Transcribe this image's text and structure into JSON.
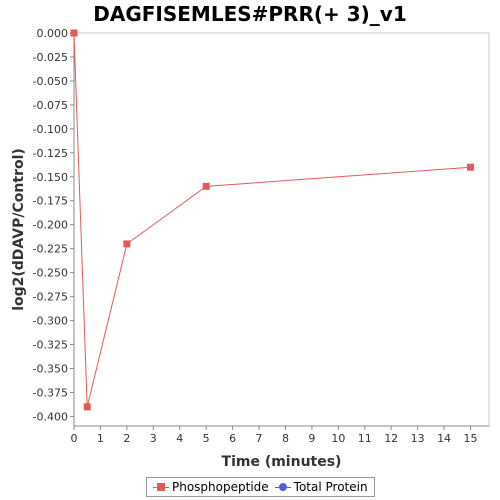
{
  "chart_data": {
    "type": "line",
    "title": "DAGFISEMLES#PRR(+ 3)_v1",
    "xlabel": "Time (minutes)",
    "ylabel": "log2(dDAVP/Control)",
    "xlim": [
      0,
      15.7
    ],
    "ylim": [
      -0.41,
      0.0
    ],
    "x_ticks": [
      0,
      1,
      2,
      3,
      4,
      5,
      6,
      7,
      8,
      9,
      10,
      11,
      12,
      13,
      14,
      15
    ],
    "y_ticks": [
      "0.000",
      "-0.025",
      "-0.050",
      "-0.075",
      "-0.100",
      "-0.125",
      "-0.150",
      "-0.175",
      "-0.200",
      "-0.225",
      "-0.250",
      "-0.275",
      "-0.300",
      "-0.325",
      "-0.350",
      "-0.375",
      "-0.400"
    ],
    "grid": false,
    "legend_position": "bottom",
    "series": [
      {
        "name": "Phosphopeptide",
        "color": "#e05a5a",
        "marker": "square",
        "points": [
          [
            0,
            0.0
          ],
          [
            0.5,
            -0.39
          ],
          [
            2,
            -0.22
          ],
          [
            5,
            -0.16
          ],
          [
            15,
            -0.14
          ]
        ]
      },
      {
        "name": "Total Protein",
        "color": "#5a5ae0",
        "marker": "circle",
        "points": []
      }
    ]
  }
}
